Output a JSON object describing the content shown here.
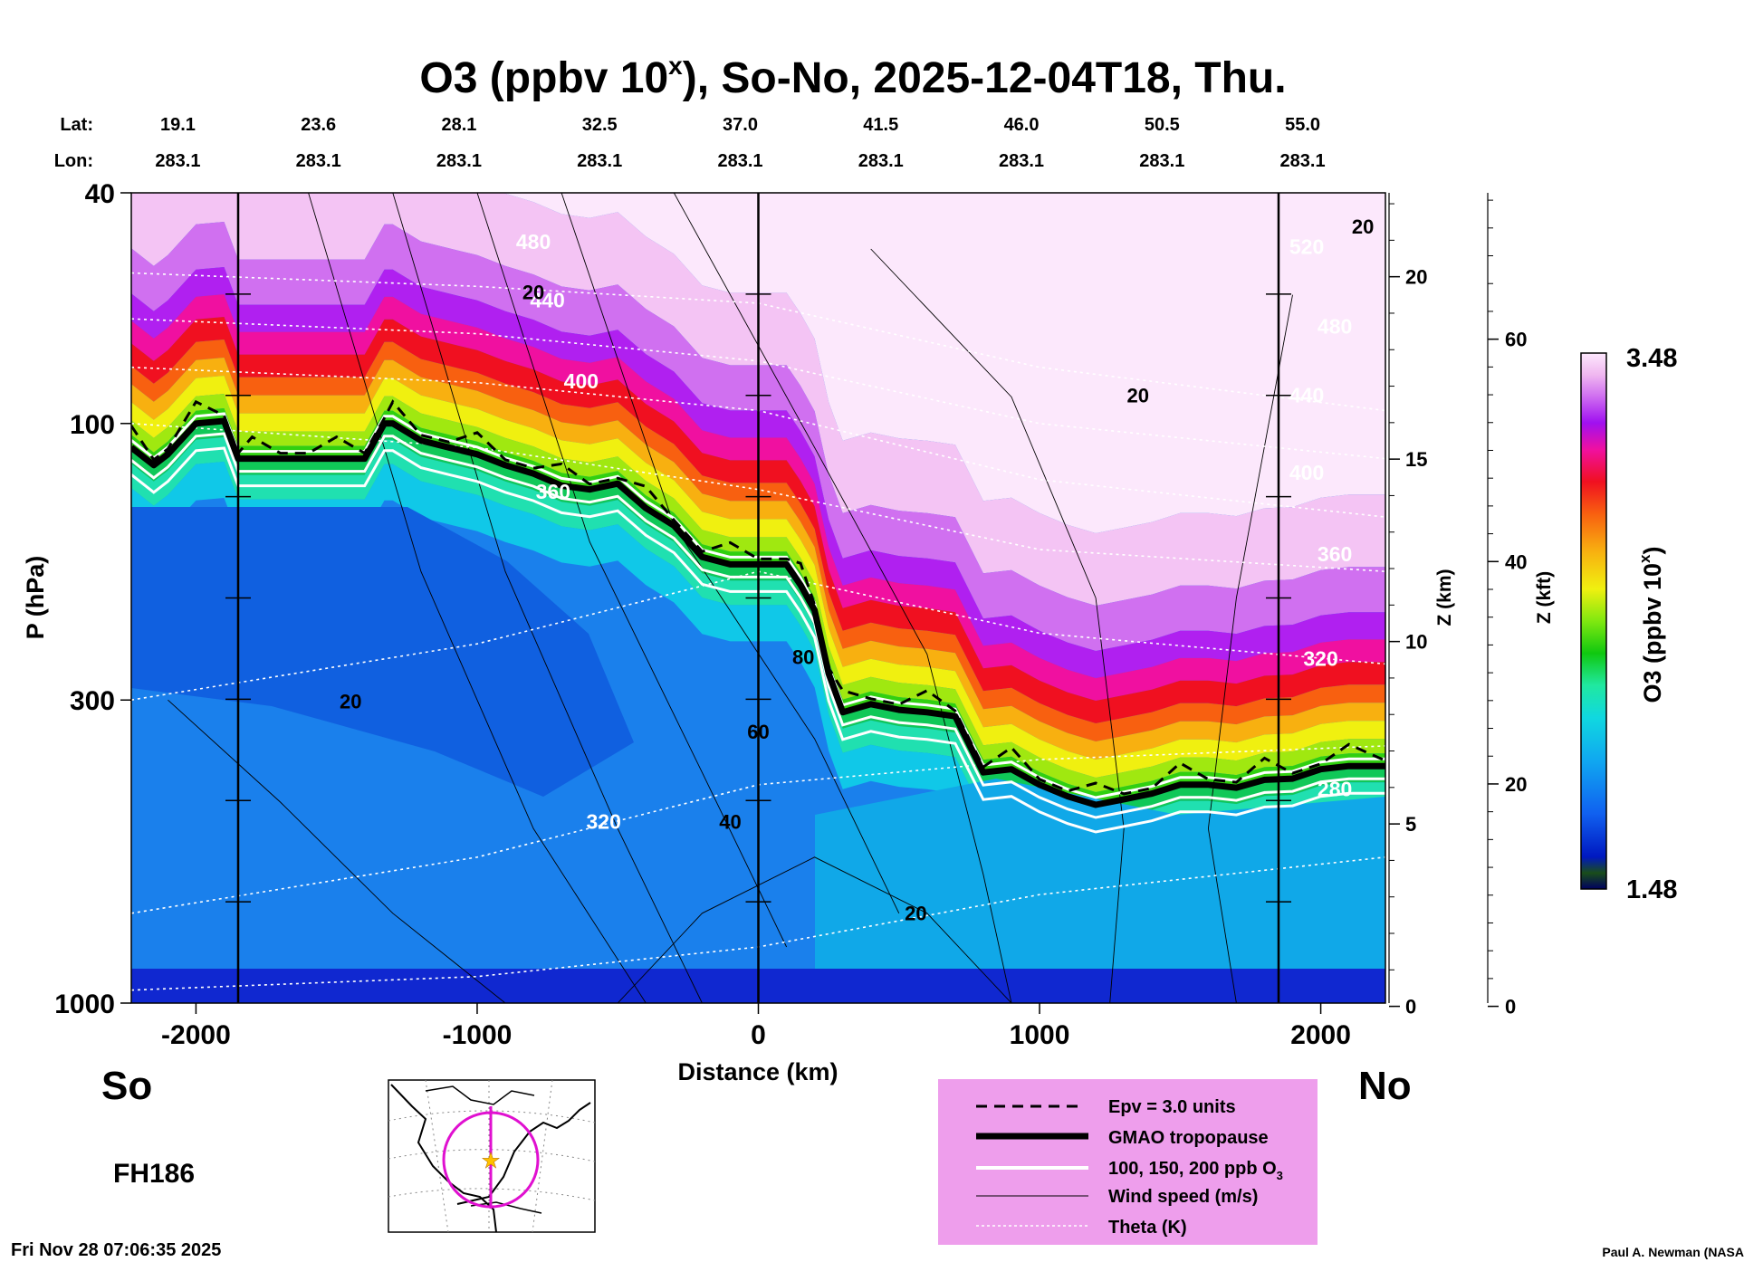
{
  "chart_data": {
    "type": "heatmap",
    "title": "O3 (ppbv 10",
    "title_superscript": "x",
    "title_rest": "), So-No, 2025-12-04T18, Thu.",
    "xlabel": "Distance (km)",
    "ylabel": "P (hPa)",
    "right_axis_1_label": "Z (km)",
    "right_axis_2_label": "Z (kft)",
    "colorbar_label": "O3 (ppbv 10",
    "colorbar_label_superscript": "x",
    "colorbar_label_rest": ")",
    "colorbar_max_label": "3.48",
    "colorbar_min_label": "1.48",
    "colorbar_range": [
      1.48,
      3.48
    ],
    "xlim": [
      -2230,
      2230
    ],
    "ylim_hpa": [
      1000,
      40
    ],
    "x_ticks": [
      -2000,
      -1000,
      0,
      1000,
      2000
    ],
    "x_tick_labels": [
      "-2000",
      "-1000",
      "0",
      "1000",
      "2000"
    ],
    "p_ticks": [
      40,
      100,
      300,
      1000
    ],
    "p_tick_labels": [
      "40",
      "100",
      "300",
      "1000"
    ],
    "z_km_ticks": [
      0,
      5,
      10,
      15,
      20
    ],
    "z_km_tick_labels": [
      "0",
      "5",
      "10",
      "15",
      "20"
    ],
    "z_kft_ticks": [
      0,
      20,
      40,
      60
    ],
    "z_kft_tick_labels": [
      "0",
      "20",
      "40",
      "60"
    ],
    "lat_label": "Lat:",
    "lon_label": "Lon:",
    "latitudes": [
      "19.1",
      "23.6",
      "28.1",
      "32.5",
      "37.0",
      "41.5",
      "46.0",
      "50.5",
      "55.0"
    ],
    "longitudes": [
      "283.1",
      "283.1",
      "283.1",
      "283.1",
      "283.1",
      "283.1",
      "283.1",
      "283.1",
      "283.1"
    ],
    "vertical_markers_km": [
      -1850,
      0,
      1850
    ],
    "south_label": "So",
    "north_label": "No",
    "forecast_hour": "FH186",
    "timestamp": "Fri Nov 28 07:06:35 2025",
    "credit": "Paul A. Newman (NASA",
    "tropopause": {
      "x": [
        -2230,
        -2150,
        -2100,
        -2000,
        -1900,
        -1850,
        -1800,
        -1700,
        -1600,
        -1500,
        -1400,
        -1330,
        -1300,
        -1200,
        -1100,
        -1000,
        -900,
        -800,
        -700,
        -600,
        -500,
        -400,
        -300,
        -200,
        -100,
        0,
        100,
        150,
        200,
        250,
        300,
        400,
        500,
        600,
        700,
        800,
        900,
        1000,
        1100,
        1200,
        1300,
        1400,
        1500,
        1600,
        1700,
        1800,
        1900,
        2000,
        2100,
        2230
      ],
      "p": [
        110,
        118,
        113,
        100,
        99,
        115,
        115,
        115,
        115,
        115,
        115,
        100,
        100,
        107,
        110,
        113,
        118,
        122,
        128,
        130,
        127,
        140,
        150,
        170,
        175,
        175,
        175,
        190,
        210,
        270,
        315,
        305,
        312,
        315,
        320,
        400,
        395,
        420,
        440,
        455,
        445,
        435,
        420,
        420,
        425,
        412,
        410,
        395,
        390,
        390
      ]
    },
    "theta_labels": [
      {
        "text": "480",
        "x": -800,
        "p": 50
      },
      {
        "text": "440",
        "x": -750,
        "p": 63
      },
      {
        "text": "400",
        "x": -630,
        "p": 87
      },
      {
        "text": "360",
        "x": -730,
        "p": 135
      },
      {
        "text": "320",
        "x": -550,
        "p": 500
      },
      {
        "text": "520",
        "x": 1950,
        "p": 51
      },
      {
        "text": "480",
        "x": 2050,
        "p": 70
      },
      {
        "text": "440",
        "x": 1950,
        "p": 92
      },
      {
        "text": "400",
        "x": 1950,
        "p": 125
      },
      {
        "text": "360",
        "x": 2050,
        "p": 173
      },
      {
        "text": "320",
        "x": 2000,
        "p": 262
      },
      {
        "text": "280",
        "x": 2050,
        "p": 440
      }
    ],
    "wind_labels": [
      {
        "text": "20",
        "x": -800,
        "p": 61
      },
      {
        "text": "20",
        "x": 1350,
        "p": 92
      },
      {
        "text": "20",
        "x": 2150,
        "p": 47
      },
      {
        "text": "20",
        "x": -1450,
        "p": 310
      },
      {
        "text": "40",
        "x": -100,
        "p": 500
      },
      {
        "text": "60",
        "x": 0,
        "p": 350
      },
      {
        "text": "80",
        "x": 160,
        "p": 260
      },
      {
        "text": "20",
        "x": 560,
        "p": 720
      }
    ]
  },
  "legend": {
    "items": [
      {
        "label": "Epv = 3.0 units",
        "style": "dashed"
      },
      {
        "label": "GMAO tropopause",
        "style": "thick"
      },
      {
        "label": "100, 150, 200 ppb O",
        "sub": "3",
        "style": "white"
      },
      {
        "label": "Wind speed (m/s)",
        "style": "thin"
      },
      {
        "label": "Theta (K)",
        "style": "dotted"
      }
    ]
  },
  "colors": {
    "legend_bg": "#ee9eec",
    "map_circle": "#e010d0",
    "map_star": "#ffc000"
  }
}
